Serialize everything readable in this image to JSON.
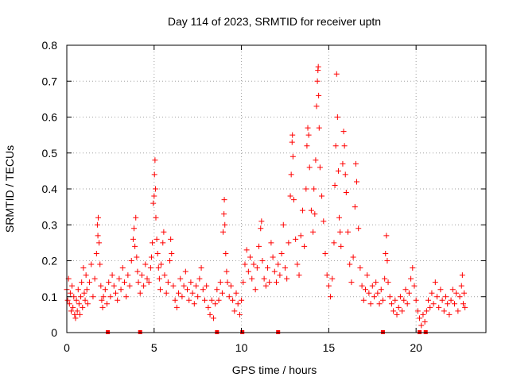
{
  "chart_data": {
    "type": "scatter",
    "title": "Day 114 of 2023, SRMTID for receiver uptn",
    "xlabel": "GPS time / hours",
    "ylabel": "SRMTID / TECUs",
    "xlim": [
      0,
      24
    ],
    "ylim": [
      0,
      0.8
    ],
    "xticks": [
      0,
      5,
      10,
      15,
      20
    ],
    "xtick_labels": [
      "0",
      "5",
      "10",
      "15",
      "20"
    ],
    "yticks": [
      0,
      0.1,
      0.2,
      0.3,
      0.4,
      0.5,
      0.6,
      0.7,
      0.8
    ],
    "ytick_labels": [
      "0",
      "0.1",
      "0.2",
      "0.3",
      "0.4",
      "0.5",
      "0.6",
      "0.7",
      "0.8"
    ],
    "grid": true,
    "marker": "+",
    "series_color": "#ff0000",
    "zero_markers_x": [
      2.35,
      4.2,
      8.6,
      10.05,
      12.1,
      18.1,
      20.2,
      20.55
    ],
    "series": [
      {
        "name": "SRMTID",
        "points": [
          [
            0.0,
            0.12
          ],
          [
            0.05,
            0.09
          ],
          [
            0.1,
            0.15
          ],
          [
            0.15,
            0.08
          ],
          [
            0.2,
            0.11
          ],
          [
            0.25,
            0.06
          ],
          [
            0.3,
            0.13
          ],
          [
            0.35,
            0.07
          ],
          [
            0.4,
            0.1
          ],
          [
            0.45,
            0.05
          ],
          [
            0.5,
            0.04
          ],
          [
            0.55,
            0.09
          ],
          [
            0.6,
            0.06
          ],
          [
            0.65,
            0.12
          ],
          [
            0.7,
            0.08
          ],
          [
            0.75,
            0.05
          ],
          [
            0.8,
            0.1
          ],
          [
            0.85,
            0.14
          ],
          [
            0.9,
            0.07
          ],
          [
            0.95,
            0.18
          ],
          [
            1.0,
            0.11
          ],
          [
            1.05,
            0.09
          ],
          [
            1.1,
            0.16
          ],
          [
            1.15,
            0.12
          ],
          [
            1.2,
            0.08
          ],
          [
            1.3,
            0.14
          ],
          [
            1.4,
            0.19
          ],
          [
            1.5,
            0.1
          ],
          [
            1.6,
            0.15
          ],
          [
            1.7,
            0.22
          ],
          [
            1.75,
            0.3
          ],
          [
            1.78,
            0.27
          ],
          [
            1.8,
            0.32
          ],
          [
            1.85,
            0.25
          ],
          [
            1.9,
            0.19
          ],
          [
            1.95,
            0.13
          ],
          [
            2.0,
            0.09
          ],
          [
            2.05,
            0.07
          ],
          [
            2.1,
            0.1
          ],
          [
            2.2,
            0.12
          ],
          [
            2.3,
            0.08
          ],
          [
            2.4,
            0.14
          ],
          [
            2.5,
            0.1
          ],
          [
            2.6,
            0.16
          ],
          [
            2.7,
            0.13
          ],
          [
            2.8,
            0.11
          ],
          [
            2.9,
            0.09
          ],
          [
            3.0,
            0.15
          ],
          [
            3.1,
            0.12
          ],
          [
            3.2,
            0.18
          ],
          [
            3.3,
            0.14
          ],
          [
            3.4,
            0.1
          ],
          [
            3.5,
            0.16
          ],
          [
            3.6,
            0.13
          ],
          [
            3.7,
            0.2
          ],
          [
            3.8,
            0.26
          ],
          [
            3.85,
            0.29
          ],
          [
            3.9,
            0.24
          ],
          [
            3.95,
            0.32
          ],
          [
            4.0,
            0.21
          ],
          [
            4.05,
            0.17
          ],
          [
            4.1,
            0.14
          ],
          [
            4.2,
            0.11
          ],
          [
            4.3,
            0.16
          ],
          [
            4.4,
            0.13
          ],
          [
            4.5,
            0.19
          ],
          [
            4.6,
            0.15
          ],
          [
            4.7,
            0.14
          ],
          [
            4.8,
            0.18
          ],
          [
            4.85,
            0.21
          ],
          [
            4.9,
            0.25
          ],
          [
            4.95,
            0.36
          ],
          [
            5.0,
            0.38
          ],
          [
            5.02,
            0.44
          ],
          [
            5.05,
            0.48
          ],
          [
            5.08,
            0.4
          ],
          [
            5.1,
            0.32
          ],
          [
            5.15,
            0.26
          ],
          [
            5.2,
            0.22
          ],
          [
            5.25,
            0.18
          ],
          [
            5.3,
            0.15
          ],
          [
            5.35,
            0.12
          ],
          [
            5.4,
            0.19
          ],
          [
            5.5,
            0.25
          ],
          [
            5.55,
            0.28
          ],
          [
            5.6,
            0.16
          ],
          [
            5.7,
            0.11
          ],
          [
            5.8,
            0.14
          ],
          [
            5.9,
            0.2
          ],
          [
            5.95,
            0.26
          ],
          [
            6.0,
            0.22
          ],
          [
            6.1,
            0.13
          ],
          [
            6.2,
            0.09
          ],
          [
            6.3,
            0.07
          ],
          [
            6.4,
            0.11
          ],
          [
            6.5,
            0.15
          ],
          [
            6.6,
            0.1
          ],
          [
            6.7,
            0.13
          ],
          [
            6.8,
            0.17
          ],
          [
            6.9,
            0.12
          ],
          [
            7.0,
            0.09
          ],
          [
            7.1,
            0.14
          ],
          [
            7.2,
            0.11
          ],
          [
            7.3,
            0.08
          ],
          [
            7.4,
            0.13
          ],
          [
            7.5,
            0.1
          ],
          [
            7.6,
            0.15
          ],
          [
            7.7,
            0.18
          ],
          [
            7.8,
            0.12
          ],
          [
            7.9,
            0.09
          ],
          [
            8.0,
            0.13
          ],
          [
            8.1,
            0.07
          ],
          [
            8.2,
            0.05
          ],
          [
            8.3,
            0.09
          ],
          [
            8.4,
            0.04
          ],
          [
            8.5,
            0.08
          ],
          [
            8.6,
            0.12
          ],
          [
            8.7,
            0.09
          ],
          [
            8.8,
            0.14
          ],
          [
            8.9,
            0.11
          ],
          [
            8.95,
            0.28
          ],
          [
            9.0,
            0.33
          ],
          [
            9.02,
            0.37
          ],
          [
            9.05,
            0.3
          ],
          [
            9.1,
            0.22
          ],
          [
            9.15,
            0.17
          ],
          [
            9.2,
            0.14
          ],
          [
            9.3,
            0.1
          ],
          [
            9.4,
            0.13
          ],
          [
            9.5,
            0.09
          ],
          [
            9.6,
            0.06
          ],
          [
            9.7,
            0.11
          ],
          [
            9.8,
            0.08
          ],
          [
            9.9,
            0.05
          ],
          [
            10.0,
            0.09
          ],
          [
            10.1,
            0.14
          ],
          [
            10.2,
            0.19
          ],
          [
            10.3,
            0.23
          ],
          [
            10.4,
            0.17
          ],
          [
            10.5,
            0.21
          ],
          [
            10.6,
            0.15
          ],
          [
            10.7,
            0.19
          ],
          [
            10.8,
            0.12
          ],
          [
            10.9,
            0.18
          ],
          [
            11.0,
            0.24
          ],
          [
            11.1,
            0.29
          ],
          [
            11.15,
            0.31
          ],
          [
            11.2,
            0.2
          ],
          [
            11.3,
            0.15
          ],
          [
            11.4,
            0.13
          ],
          [
            11.5,
            0.18
          ],
          [
            11.6,
            0.14
          ],
          [
            11.7,
            0.25
          ],
          [
            11.8,
            0.21
          ],
          [
            11.9,
            0.17
          ],
          [
            12.0,
            0.14
          ],
          [
            12.1,
            0.19
          ],
          [
            12.2,
            0.16
          ],
          [
            12.3,
            0.22
          ],
          [
            12.4,
            0.3
          ],
          [
            12.5,
            0.18
          ],
          [
            12.6,
            0.15
          ],
          [
            12.7,
            0.25
          ],
          [
            12.8,
            0.38
          ],
          [
            12.85,
            0.44
          ],
          [
            12.9,
            0.53
          ],
          [
            12.92,
            0.55
          ],
          [
            12.95,
            0.49
          ],
          [
            13.0,
            0.37
          ],
          [
            13.1,
            0.26
          ],
          [
            13.2,
            0.19
          ],
          [
            13.3,
            0.16
          ],
          [
            13.4,
            0.27
          ],
          [
            13.5,
            0.34
          ],
          [
            13.6,
            0.24
          ],
          [
            13.7,
            0.4
          ],
          [
            13.75,
            0.52
          ],
          [
            13.8,
            0.57
          ],
          [
            13.85,
            0.55
          ],
          [
            13.9,
            0.46
          ],
          [
            14.0,
            0.34
          ],
          [
            14.1,
            0.28
          ],
          [
            14.15,
            0.4
          ],
          [
            14.2,
            0.33
          ],
          [
            14.25,
            0.48
          ],
          [
            14.3,
            0.63
          ],
          [
            14.35,
            0.7
          ],
          [
            14.38,
            0.73
          ],
          [
            14.4,
            0.74
          ],
          [
            14.42,
            0.66
          ],
          [
            14.45,
            0.57
          ],
          [
            14.5,
            0.46
          ],
          [
            14.6,
            0.38
          ],
          [
            14.7,
            0.31
          ],
          [
            14.8,
            0.22
          ],
          [
            14.9,
            0.16
          ],
          [
            15.0,
            0.13
          ],
          [
            15.1,
            0.1
          ],
          [
            15.2,
            0.15
          ],
          [
            15.3,
            0.25
          ],
          [
            15.35,
            0.41
          ],
          [
            15.4,
            0.52
          ],
          [
            15.45,
            0.72
          ],
          [
            15.5,
            0.6
          ],
          [
            15.55,
            0.45
          ],
          [
            15.6,
            0.32
          ],
          [
            15.65,
            0.28
          ],
          [
            15.7,
            0.24
          ],
          [
            15.8,
            0.47
          ],
          [
            15.85,
            0.56
          ],
          [
            15.9,
            0.52
          ],
          [
            15.95,
            0.44
          ],
          [
            16.0,
            0.39
          ],
          [
            16.1,
            0.28
          ],
          [
            16.2,
            0.19
          ],
          [
            16.3,
            0.14
          ],
          [
            16.4,
            0.21
          ],
          [
            16.5,
            0.35
          ],
          [
            16.55,
            0.47
          ],
          [
            16.6,
            0.42
          ],
          [
            16.7,
            0.29
          ],
          [
            16.8,
            0.18
          ],
          [
            16.9,
            0.13
          ],
          [
            17.0,
            0.09
          ],
          [
            17.1,
            0.12
          ],
          [
            17.2,
            0.16
          ],
          [
            17.3,
            0.11
          ],
          [
            17.4,
            0.08
          ],
          [
            17.5,
            0.13
          ],
          [
            17.6,
            0.1
          ],
          [
            17.7,
            0.14
          ],
          [
            17.8,
            0.11
          ],
          [
            17.9,
            0.08
          ],
          [
            18.0,
            0.12
          ],
          [
            18.1,
            0.09
          ],
          [
            18.2,
            0.15
          ],
          [
            18.25,
            0.22
          ],
          [
            18.3,
            0.27
          ],
          [
            18.35,
            0.2
          ],
          [
            18.4,
            0.14
          ],
          [
            18.5,
            0.1
          ],
          [
            18.6,
            0.08
          ],
          [
            18.7,
            0.06
          ],
          [
            18.8,
            0.09
          ],
          [
            18.9,
            0.05
          ],
          [
            19.0,
            0.07
          ],
          [
            19.1,
            0.1
          ],
          [
            19.2,
            0.06
          ],
          [
            19.3,
            0.09
          ],
          [
            19.4,
            0.12
          ],
          [
            19.5,
            0.08
          ],
          [
            19.6,
            0.11
          ],
          [
            19.7,
            0.15
          ],
          [
            19.8,
            0.18
          ],
          [
            19.9,
            0.13
          ],
          [
            20.0,
            0.09
          ],
          [
            20.1,
            0.06
          ],
          [
            20.2,
            0.04
          ],
          [
            20.3,
            0.02
          ],
          [
            20.4,
            0.05
          ],
          [
            20.5,
            0.03
          ],
          [
            20.6,
            0.06
          ],
          [
            20.7,
            0.09
          ],
          [
            20.8,
            0.07
          ],
          [
            20.9,
            0.11
          ],
          [
            21.0,
            0.08
          ],
          [
            21.1,
            0.14
          ],
          [
            21.2,
            0.1
          ],
          [
            21.3,
            0.07
          ],
          [
            21.4,
            0.12
          ],
          [
            21.5,
            0.09
          ],
          [
            21.6,
            0.06
          ],
          [
            21.7,
            0.1
          ],
          [
            21.8,
            0.08
          ],
          [
            21.9,
            0.05
          ],
          [
            22.0,
            0.09
          ],
          [
            22.1,
            0.12
          ],
          [
            22.2,
            0.08
          ],
          [
            22.3,
            0.11
          ],
          [
            22.4,
            0.06
          ],
          [
            22.5,
            0.1
          ],
          [
            22.6,
            0.13
          ],
          [
            22.65,
            0.16
          ],
          [
            22.7,
            0.08
          ],
          [
            22.75,
            0.11
          ],
          [
            22.8,
            0.07
          ]
        ]
      }
    ]
  }
}
